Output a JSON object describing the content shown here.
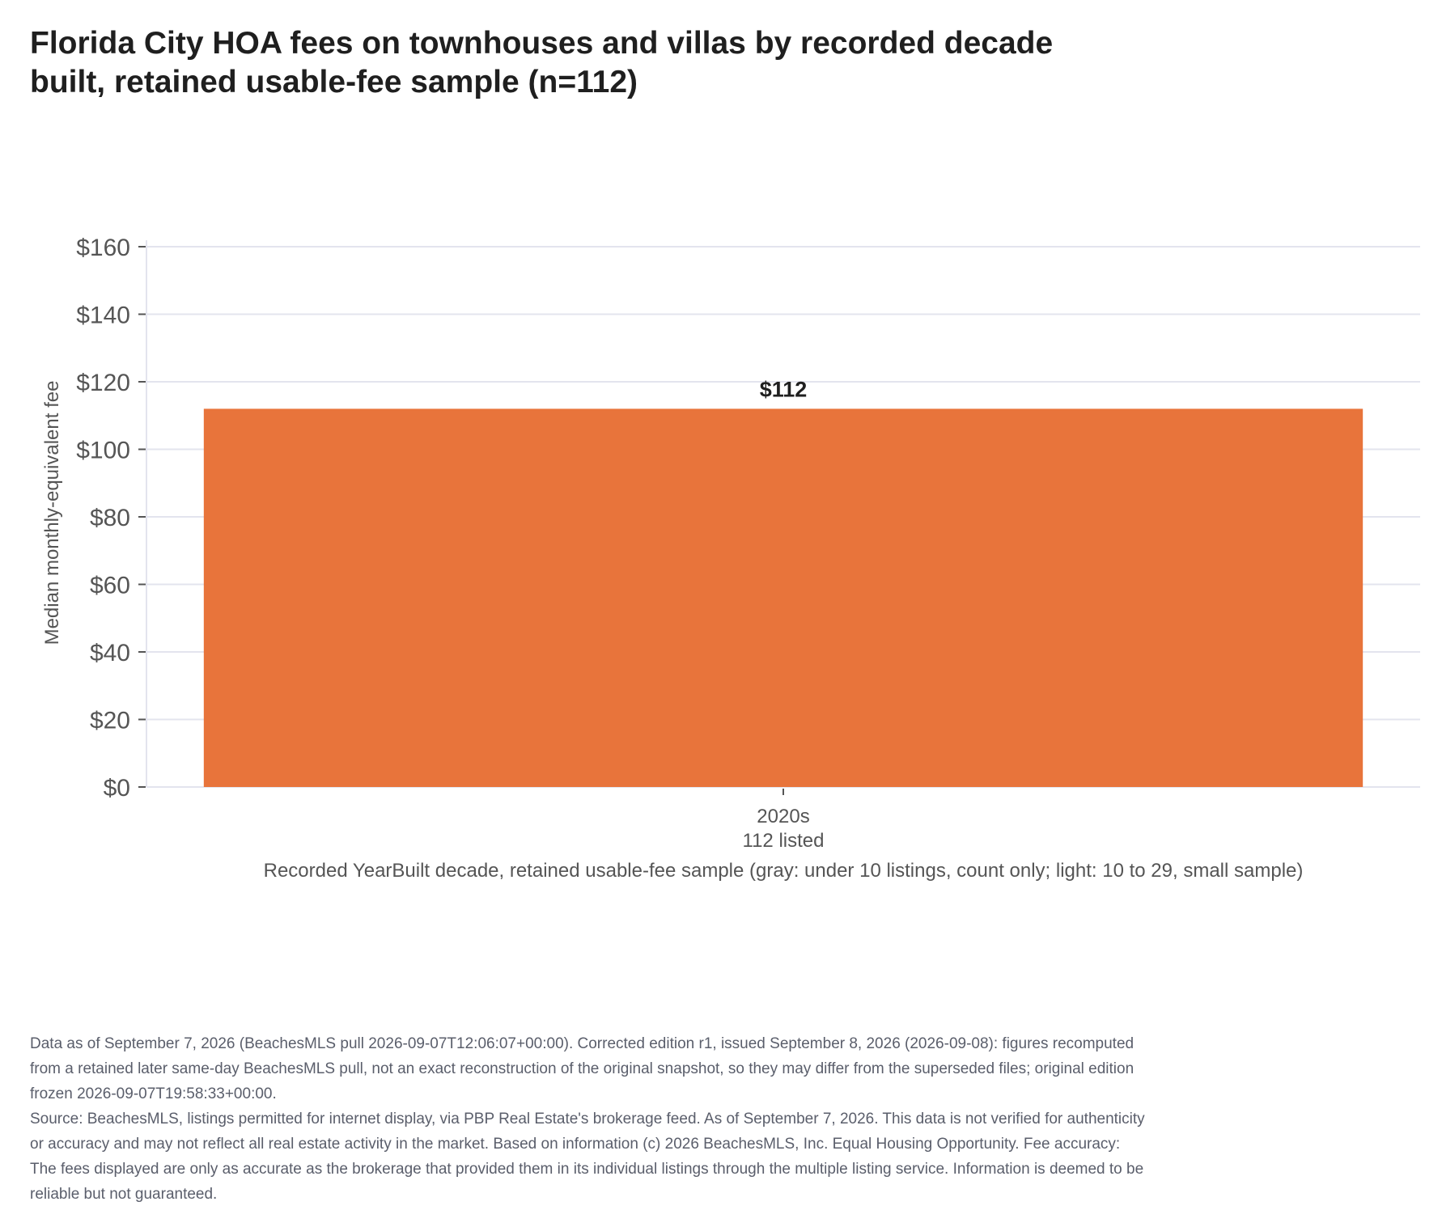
{
  "chart_data": {
    "type": "bar",
    "title": "Florida City HOA fees on townhouses and villas by recorded decade built, retained usable-fee sample (n=112)",
    "ylabel": "Median monthly-equivalent fee",
    "xlabel": "Recorded YearBuilt decade, retained usable-fee sample (gray: under 10 listings, count only; light: 10 to 29, small sample)",
    "categories": [
      "2020s"
    ],
    "category_counts": [
      "112 listed"
    ],
    "values": [
      112
    ],
    "data_labels": [
      "$112"
    ],
    "ylim": [
      0,
      160
    ],
    "yticks": [
      0,
      20,
      40,
      60,
      80,
      100,
      120,
      140,
      160
    ],
    "ytick_labels": [
      "$0",
      "$20",
      "$40",
      "$60",
      "$80",
      "$100",
      "$120",
      "$140",
      "$160"
    ],
    "grid": true,
    "bar_color": "#e8743b",
    "grid_color": "#e3e4ee",
    "axis_color": "#555555"
  },
  "footnote": {
    "line1": "Data as of September 7, 2026 (BeachesMLS pull 2026-09-07T12:06:07+00:00). Corrected edition r1, issued September 8, 2026 (2026-09-08): figures recomputed from a retained later same-day BeachesMLS pull, not an exact reconstruction of the original snapshot, so they may differ from the superseded files; original edition frozen 2026-09-07T19:58:33+00:00.",
    "line2": "Source: BeachesMLS, listings permitted for internet display, via PBP Real Estate's brokerage feed. As of September 7, 2026. This data is not verified for authenticity or accuracy and may not reflect all real estate activity in the market. Based on information (c) 2026 BeachesMLS, Inc. Equal Housing Opportunity. Fee accuracy: The fees displayed are only as accurate as the brokerage that provided them in its individual listings through the multiple listing service. Information is deemed to be reliable but not guaranteed."
  }
}
